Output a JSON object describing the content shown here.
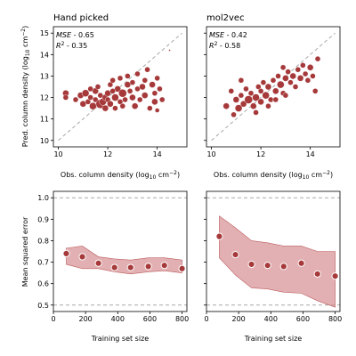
{
  "figure": {
    "colors": {
      "point": "#a6393a",
      "point_edge": "#ffffff",
      "band": "#d58f91",
      "band_edge": "#bd5d5f",
      "dashed": "#a8a8a8",
      "text": "#000000"
    }
  },
  "chart_data": [
    {
      "type": "scatter",
      "title": "Hand picked",
      "xlabel": "Obs. column density (log",
      "xlabel_sub": "10",
      "xlabel_tail": " cm",
      "xlabel_sup": "−2",
      "xlabel_close": ")",
      "ylabel": "Pred. column density (log",
      "ylabel_sub": "10",
      "ylabel_tail": " cm",
      "ylabel_sup": "−2",
      "ylabel_close": ")",
      "xlim": [
        9.8,
        15.2
      ],
      "ylim": [
        9.7,
        15.3
      ],
      "xticks": [
        "10",
        "12",
        "14"
      ],
      "yticks": [
        "10",
        "11",
        "12",
        "13",
        "14",
        "15"
      ],
      "identity_line": [
        10,
        15
      ],
      "annotations": {
        "mse_label": "MSE",
        "mse_value": " - 0.65",
        "r2_label": "R",
        "r2_sup": "2",
        "r2_value": " - 0.35"
      },
      "points": [
        {
          "x": 10.3,
          "y": 12.2,
          "s": 3.5
        },
        {
          "x": 10.3,
          "y": 12.0,
          "s": 3.0
        },
        {
          "x": 10.7,
          "y": 11.9,
          "s": 3.0
        },
        {
          "x": 10.9,
          "y": 12.1,
          "s": 3.5
        },
        {
          "x": 11.0,
          "y": 11.7,
          "s": 3.5
        },
        {
          "x": 11.1,
          "y": 12.2,
          "s": 4.0
        },
        {
          "x": 11.2,
          "y": 11.8,
          "s": 3.0
        },
        {
          "x": 11.3,
          "y": 12.0,
          "s": 3.0
        },
        {
          "x": 11.4,
          "y": 11.6,
          "s": 4.0
        },
        {
          "x": 11.5,
          "y": 12.3,
          "s": 3.5
        },
        {
          "x": 11.5,
          "y": 11.9,
          "s": 3.0
        },
        {
          "x": 11.6,
          "y": 12.5,
          "s": 3.0
        },
        {
          "x": 11.7,
          "y": 11.7,
          "s": 5.0
        },
        {
          "x": 11.7,
          "y": 12.1,
          "s": 3.0
        },
        {
          "x": 11.8,
          "y": 11.8,
          "s": 4.0
        },
        {
          "x": 11.9,
          "y": 11.5,
          "s": 3.5
        },
        {
          "x": 11.9,
          "y": 12.0,
          "s": 3.5
        },
        {
          "x": 12.0,
          "y": 12.2,
          "s": 3.5
        },
        {
          "x": 12.0,
          "y": 11.9,
          "s": 3.0
        },
        {
          "x": 12.1,
          "y": 12.6,
          "s": 3.0
        },
        {
          "x": 12.1,
          "y": 11.7,
          "s": 3.5
        },
        {
          "x": 12.2,
          "y": 12.8,
          "s": 3.0
        },
        {
          "x": 12.3,
          "y": 12.0,
          "s": 4.0
        },
        {
          "x": 12.3,
          "y": 11.5,
          "s": 3.0
        },
        {
          "x": 12.4,
          "y": 12.4,
          "s": 3.5
        },
        {
          "x": 12.5,
          "y": 11.8,
          "s": 3.0
        },
        {
          "x": 12.5,
          "y": 12.9,
          "s": 3.0
        },
        {
          "x": 12.6,
          "y": 12.2,
          "s": 4.5
        },
        {
          "x": 12.7,
          "y": 11.9,
          "s": 3.0
        },
        {
          "x": 12.8,
          "y": 12.6,
          "s": 3.5
        },
        {
          "x": 12.8,
          "y": 13.0,
          "s": 3.0
        },
        {
          "x": 12.9,
          "y": 12.3,
          "s": 3.0
        },
        {
          "x": 13.0,
          "y": 12.0,
          "s": 3.5
        },
        {
          "x": 13.0,
          "y": 12.7,
          "s": 3.0
        },
        {
          "x": 13.1,
          "y": 11.6,
          "s": 3.5
        },
        {
          "x": 13.2,
          "y": 12.4,
          "s": 3.0
        },
        {
          "x": 13.2,
          "y": 13.1,
          "s": 3.0
        },
        {
          "x": 13.3,
          "y": 11.9,
          "s": 3.0
        },
        {
          "x": 13.4,
          "y": 12.5,
          "s": 3.5
        },
        {
          "x": 13.5,
          "y": 12.8,
          "s": 3.0
        },
        {
          "x": 13.5,
          "y": 12.1,
          "s": 3.5
        },
        {
          "x": 13.6,
          "y": 13.3,
          "s": 3.0
        },
        {
          "x": 13.7,
          "y": 11.5,
          "s": 3.0
        },
        {
          "x": 13.8,
          "y": 12.6,
          "s": 3.5
        },
        {
          "x": 13.9,
          "y": 12.2,
          "s": 3.0
        },
        {
          "x": 13.9,
          "y": 11.8,
          "s": 3.5
        },
        {
          "x": 14.0,
          "y": 12.9,
          "s": 3.0
        },
        {
          "x": 14.1,
          "y": 12.4,
          "s": 3.0
        },
        {
          "x": 14.2,
          "y": 11.9,
          "s": 3.0
        },
        {
          "x": 14.0,
          "y": 11.4,
          "s": 2.5
        },
        {
          "x": 14.5,
          "y": 14.2,
          "s": 1.0
        },
        {
          "x": 12.2,
          "y": 12.3,
          "s": 3.0
        },
        {
          "x": 11.3,
          "y": 12.4,
          "s": 3.0
        },
        {
          "x": 12.6,
          "y": 11.6,
          "s": 3.0
        }
      ]
    },
    {
      "type": "scatter",
      "title": "mol2vec",
      "xlabel": "Obs. column density (log",
      "xlabel_sub": "10",
      "xlabel_tail": " cm",
      "xlabel_sup": "−2",
      "xlabel_close": ")",
      "xlim": [
        9.8,
        15.2
      ],
      "ylim": [
        9.7,
        15.3
      ],
      "xticks": [
        "10",
        "12",
        "14"
      ],
      "identity_line": [
        10,
        15
      ],
      "annotations": {
        "mse_label": "MSE",
        "mse_value": " - 0.42",
        "r2_label": "R",
        "r2_sup": "2",
        "r2_value": " - 0.58"
      },
      "points": [
        {
          "x": 10.6,
          "y": 11.6,
          "s": 3.5
        },
        {
          "x": 10.8,
          "y": 12.3,
          "s": 3.0
        },
        {
          "x": 10.9,
          "y": 11.2,
          "s": 3.0
        },
        {
          "x": 11.0,
          "y": 11.9,
          "s": 3.5
        },
        {
          "x": 11.1,
          "y": 11.5,
          "s": 4.0
        },
        {
          "x": 11.2,
          "y": 12.1,
          "s": 3.0
        },
        {
          "x": 11.3,
          "y": 11.7,
          "s": 3.5
        },
        {
          "x": 11.4,
          "y": 12.4,
          "s": 3.0
        },
        {
          "x": 11.5,
          "y": 11.9,
          "s": 4.5
        },
        {
          "x": 11.6,
          "y": 12.2,
          "s": 3.0
        },
        {
          "x": 11.7,
          "y": 11.6,
          "s": 3.5
        },
        {
          "x": 11.8,
          "y": 12.0,
          "s": 4.0
        },
        {
          "x": 11.9,
          "y": 12.5,
          "s": 3.0
        },
        {
          "x": 12.0,
          "y": 11.8,
          "s": 3.5
        },
        {
          "x": 12.0,
          "y": 12.3,
          "s": 3.0
        },
        {
          "x": 12.1,
          "y": 12.7,
          "s": 3.0
        },
        {
          "x": 12.2,
          "y": 12.1,
          "s": 4.0
        },
        {
          "x": 12.3,
          "y": 12.5,
          "s": 3.5
        },
        {
          "x": 12.4,
          "y": 11.9,
          "s": 3.0
        },
        {
          "x": 12.5,
          "y": 12.8,
          "s": 3.0
        },
        {
          "x": 12.6,
          "y": 12.3,
          "s": 3.5
        },
        {
          "x": 12.7,
          "y": 13.0,
          "s": 3.0
        },
        {
          "x": 12.8,
          "y": 12.6,
          "s": 4.0
        },
        {
          "x": 12.9,
          "y": 12.2,
          "s": 3.0
        },
        {
          "x": 13.0,
          "y": 12.9,
          "s": 3.5
        },
        {
          "x": 13.1,
          "y": 13.2,
          "s": 3.0
        },
        {
          "x": 13.2,
          "y": 12.7,
          "s": 3.0
        },
        {
          "x": 13.3,
          "y": 13.0,
          "s": 3.5
        },
        {
          "x": 13.4,
          "y": 12.5,
          "s": 3.0
        },
        {
          "x": 13.5,
          "y": 13.3,
          "s": 3.0
        },
        {
          "x": 13.6,
          "y": 12.9,
          "s": 3.5
        },
        {
          "x": 13.7,
          "y": 13.5,
          "s": 3.0
        },
        {
          "x": 13.8,
          "y": 13.1,
          "s": 3.0
        },
        {
          "x": 13.9,
          "y": 12.8,
          "s": 3.0
        },
        {
          "x": 14.0,
          "y": 13.4,
          "s": 3.5
        },
        {
          "x": 14.1,
          "y": 13.0,
          "s": 3.0
        },
        {
          "x": 14.2,
          "y": 12.3,
          "s": 3.0
        },
        {
          "x": 14.3,
          "y": 13.8,
          "s": 3.0
        },
        {
          "x": 12.3,
          "y": 11.6,
          "s": 3.0
        },
        {
          "x": 11.2,
          "y": 12.8,
          "s": 3.0
        },
        {
          "x": 12.6,
          "y": 11.9,
          "s": 3.0
        },
        {
          "x": 13.0,
          "y": 12.1,
          "s": 3.0
        },
        {
          "x": 11.8,
          "y": 11.3,
          "s": 3.0
        },
        {
          "x": 12.9,
          "y": 13.4,
          "s": 3.0
        }
      ]
    },
    {
      "type": "line",
      "title": "",
      "xlabel": "Training set size",
      "ylabel": "Mean squared error",
      "xlim": [
        0,
        830
      ],
      "ylim": [
        0.47,
        1.03
      ],
      "xticks": [
        0,
        200,
        400,
        600,
        800
      ],
      "yticks": [
        "0.5",
        "0.6",
        "0.7",
        "0.8",
        "0.9",
        "1.0"
      ],
      "reference_lines": [
        1.0,
        0.5
      ],
      "x": [
        80,
        180,
        280,
        380,
        480,
        590,
        690,
        800
      ],
      "mean": [
        0.74,
        0.725,
        0.695,
        0.675,
        0.675,
        0.68,
        0.685,
        0.67
      ],
      "upper": [
        0.765,
        0.775,
        0.725,
        0.715,
        0.71,
        0.72,
        0.72,
        0.71
      ],
      "lower": [
        0.69,
        0.67,
        0.67,
        0.655,
        0.645,
        0.655,
        0.66,
        0.65
      ]
    },
    {
      "type": "line",
      "title": "",
      "xlabel": "Training set size",
      "xlim": [
        0,
        830
      ],
      "ylim": [
        0.47,
        1.03
      ],
      "xticks": [
        0,
        200,
        400,
        600,
        800
      ],
      "reference_lines": [
        1.0,
        0.5
      ],
      "x": [
        80,
        180,
        280,
        380,
        480,
        590,
        690,
        800
      ],
      "mean": [
        0.82,
        0.735,
        0.69,
        0.685,
        0.68,
        0.695,
        0.645,
        0.635
      ],
      "upper": [
        0.915,
        0.86,
        0.8,
        0.79,
        0.775,
        0.775,
        0.75,
        0.75
      ],
      "lower": [
        0.72,
        0.64,
        0.58,
        0.575,
        0.56,
        0.555,
        0.52,
        0.49
      ]
    }
  ]
}
